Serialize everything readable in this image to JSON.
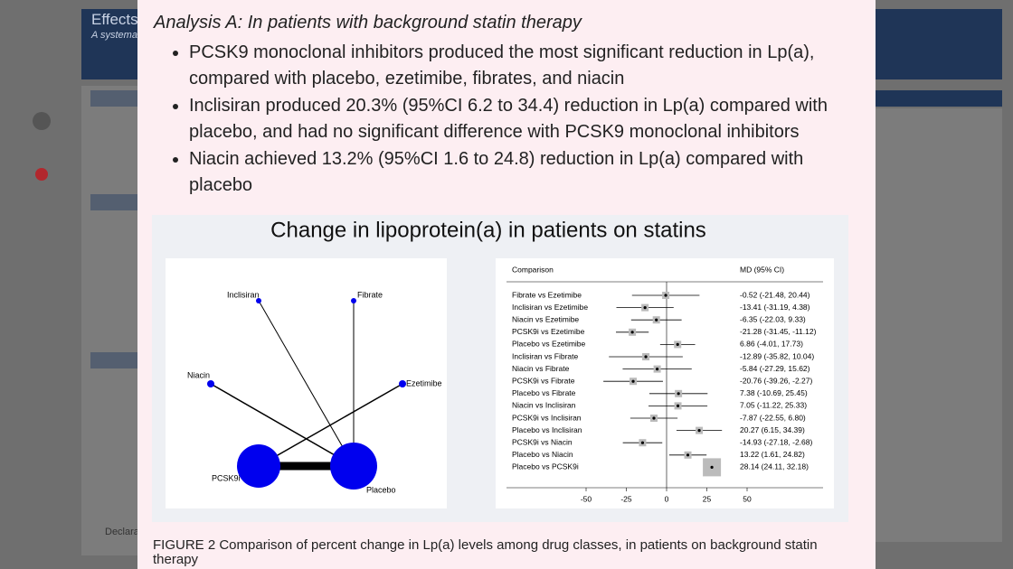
{
  "background": {
    "title": "Effects",
    "subtitle": "A systemat",
    "section": "Declarat"
  },
  "modal": {
    "heading": "Analysis A: In patients with background statin therapy",
    "bullets": [
      "PCSK9 monoclonal inhibitors produced the most significant reduction in Lp(a), compared with placebo, ezetimibe, fibrates, and niacin",
      "Inclisiran produced 20.3% (95%CI 6.2 to 34.4) reduction in Lp(a) compared with placebo, and had no significant difference with PCSK9 monoclonal inhibitors",
      "Niacin achieved 13.2% (95%CI 1.6 to 24.8) reduction in Lp(a) compared with placebo"
    ],
    "figure": {
      "title": "Change in lipoprotein(a) in patients on statins",
      "network": {
        "nodes": [
          "Inclisiran",
          "Fibrate",
          "Niacin",
          "Ezetimibe",
          "PCSK9i",
          "Placebo"
        ]
      },
      "forest": {
        "columns": [
          "Comparison",
          "MD (95% CI)"
        ],
        "xlim": [
          -50,
          50
        ],
        "xticks": [
          -50,
          -25,
          0,
          25,
          50
        ],
        "rows": [
          {
            "label": "Fibrate vs Ezetimibe",
            "md": -0.52,
            "low": -21.48,
            "high": 20.44,
            "text": "-0.52 (-21.48, 20.44)"
          },
          {
            "label": "Inclisiran vs Ezetimibe",
            "md": -13.41,
            "low": -31.19,
            "high": 4.38,
            "text": "-13.41 (-31.19, 4.38)"
          },
          {
            "label": "Niacin vs Ezetimibe",
            "md": -6.35,
            "low": -22.03,
            "high": 9.33,
            "text": "-6.35 (-22.03, 9.33)"
          },
          {
            "label": "PCSK9i vs Ezetimibe",
            "md": -21.28,
            "low": -31.45,
            "high": -11.12,
            "text": "-21.28 (-31.45, -11.12)"
          },
          {
            "label": "Placebo vs Ezetimibe",
            "md": 6.86,
            "low": -4.01,
            "high": 17.73,
            "text": "6.86 (-4.01, 17.73)"
          },
          {
            "label": "Inclisiran vs Fibrate",
            "md": -12.89,
            "low": -35.82,
            "high": 10.04,
            "text": "-12.89 (-35.82, 10.04)"
          },
          {
            "label": "Niacin vs Fibrate",
            "md": -5.84,
            "low": -27.29,
            "high": 15.62,
            "text": "-5.84 (-27.29, 15.62)"
          },
          {
            "label": "PCSK9i vs Fibrate",
            "md": -20.76,
            "low": -39.26,
            "high": -2.27,
            "text": "-20.76 (-39.26, -2.27)"
          },
          {
            "label": "Placebo vs Fibrate",
            "md": 7.38,
            "low": -10.69,
            "high": 25.45,
            "text": "7.38 (-10.69, 25.45)"
          },
          {
            "label": "Niacin vs Inclisiran",
            "md": 7.05,
            "low": -11.22,
            "high": 25.33,
            "text": "7.05 (-11.22, 25.33)"
          },
          {
            "label": "PCSK9i vs Inclisiran",
            "md": -7.87,
            "low": -22.55,
            "high": 6.8,
            "text": "-7.87 (-22.55, 6.80)"
          },
          {
            "label": "Placebo vs Inclisiran",
            "md": 20.27,
            "low": 6.15,
            "high": 34.39,
            "text": "20.27 (6.15, 34.39)"
          },
          {
            "label": "PCSK9i vs Niacin",
            "md": -14.93,
            "low": -27.18,
            "high": -2.68,
            "text": "-14.93 (-27.18, -2.68)"
          },
          {
            "label": "Placebo vs Niacin",
            "md": 13.22,
            "low": 1.61,
            "high": 24.82,
            "text": "13.22 (1.61, 24.82)"
          },
          {
            "label": "Placebo vs PCSK9i",
            "md": 28.14,
            "low": 24.11,
            "high": 32.18,
            "text": "28.14 (24.11, 32.18)"
          }
        ]
      },
      "caption": "FIGURE 2  Comparison of percent change in Lp(a) levels among drug classes, in patients on background statin therapy"
    }
  }
}
